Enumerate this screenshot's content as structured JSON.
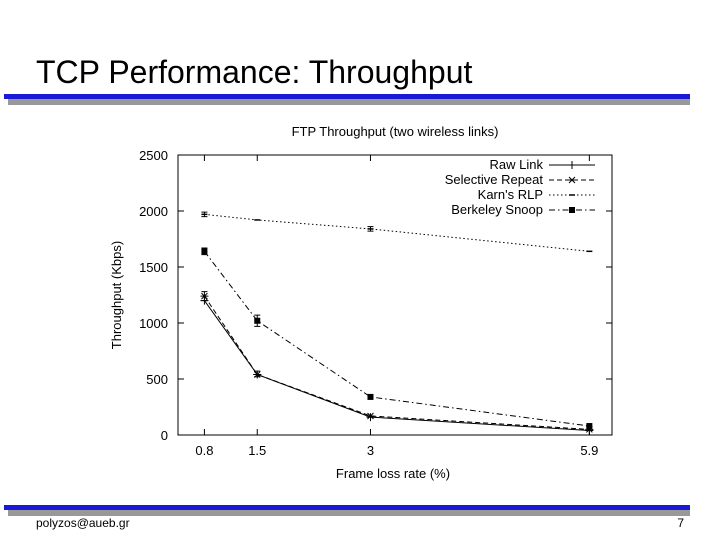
{
  "slide": {
    "title": "TCP Performance: Throughput",
    "footer_left": "polyzos@aueb.gr",
    "page_number": "7",
    "accent_color": "#1a1ad6"
  },
  "chart_data": {
    "type": "line",
    "title": "FTP Throughput (two wireless links)",
    "xlabel": "Frame loss rate (%)",
    "ylabel": "Throughput (Kbps)",
    "categories": [
      "0.8",
      "1.5",
      "3",
      "5.9"
    ],
    "x_values": [
      0.8,
      1.5,
      3,
      5.9
    ],
    "xlim": [
      0.45,
      6.2
    ],
    "ylim": [
      0,
      2500
    ],
    "yticks": [
      0,
      500,
      1000,
      1500,
      2000,
      2500
    ],
    "legend_position": "top-right",
    "series": [
      {
        "name": "Raw Link",
        "style": "solid",
        "marker": "plus",
        "values": [
          1200,
          540,
          160,
          40
        ]
      },
      {
        "name": "Selective Repeat",
        "style": "dashed",
        "marker": "star",
        "values": [
          1240,
          540,
          170,
          50
        ]
      },
      {
        "name": "Karn's RLP",
        "style": "dotted",
        "marker": "tick",
        "values": [
          1970,
          1920,
          1840,
          1640
        ]
      },
      {
        "name": "Berkeley Snoop",
        "style": "dashdot",
        "marker": "square",
        "values": [
          1640,
          1020,
          340,
          80
        ]
      }
    ],
    "error_bars": [
      {
        "series": "Selective Repeat",
        "x": 0.8,
        "low": 1200,
        "high": 1280
      },
      {
        "series": "Berkeley Snoop",
        "x": 0.8,
        "low": 1610,
        "high": 1670
      },
      {
        "series": "Berkeley Snoop",
        "x": 1.5,
        "low": 970,
        "high": 1070
      },
      {
        "series": "Raw Link",
        "x": 1.5,
        "low": 520,
        "high": 570
      },
      {
        "series": "Karn's RLP",
        "x": 0.8,
        "low": 1950,
        "high": 1990
      },
      {
        "series": "Karn's RLP",
        "x": 3,
        "low": 1820,
        "high": 1860
      }
    ]
  }
}
